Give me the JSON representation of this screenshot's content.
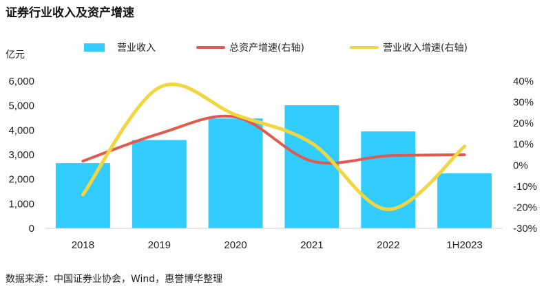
{
  "chart_data": {
    "type": "bar+line",
    "title": "证券行业收入及资产增速",
    "source": "数据来源：中国证券业协会，Wind，惠誉博华整理",
    "left_axis_unit": "亿元",
    "categories": [
      "2018",
      "2019",
      "2020",
      "2021",
      "2022",
      "1H2023"
    ],
    "left_ticks": [
      "6,000",
      "5,000",
      "4,000",
      "3,000",
      "2,000",
      "1,000",
      "0"
    ],
    "right_ticks": [
      "40%",
      "30%",
      "20%",
      "10%",
      "0%",
      "-10%",
      "-20%",
      "-30%"
    ],
    "ylim_left": [
      0,
      6000
    ],
    "ylim_right": [
      -30,
      40
    ],
    "legend_position": "top",
    "bar_series": {
      "name": "营业收入",
      "color": "#33CCFF",
      "values": [
        2660,
        3600,
        4480,
        5020,
        3950,
        2240
      ]
    },
    "line_series": [
      {
        "name": "总资产增速(右轴)",
        "color": "#E05A4E",
        "values": [
          2,
          15,
          23,
          2,
          4.5,
          5
        ]
      },
      {
        "name": "营业收入增速(右轴)",
        "color": "#F2D641",
        "values": [
          -14,
          37,
          24,
          10.5,
          -21,
          9
        ]
      }
    ]
  }
}
